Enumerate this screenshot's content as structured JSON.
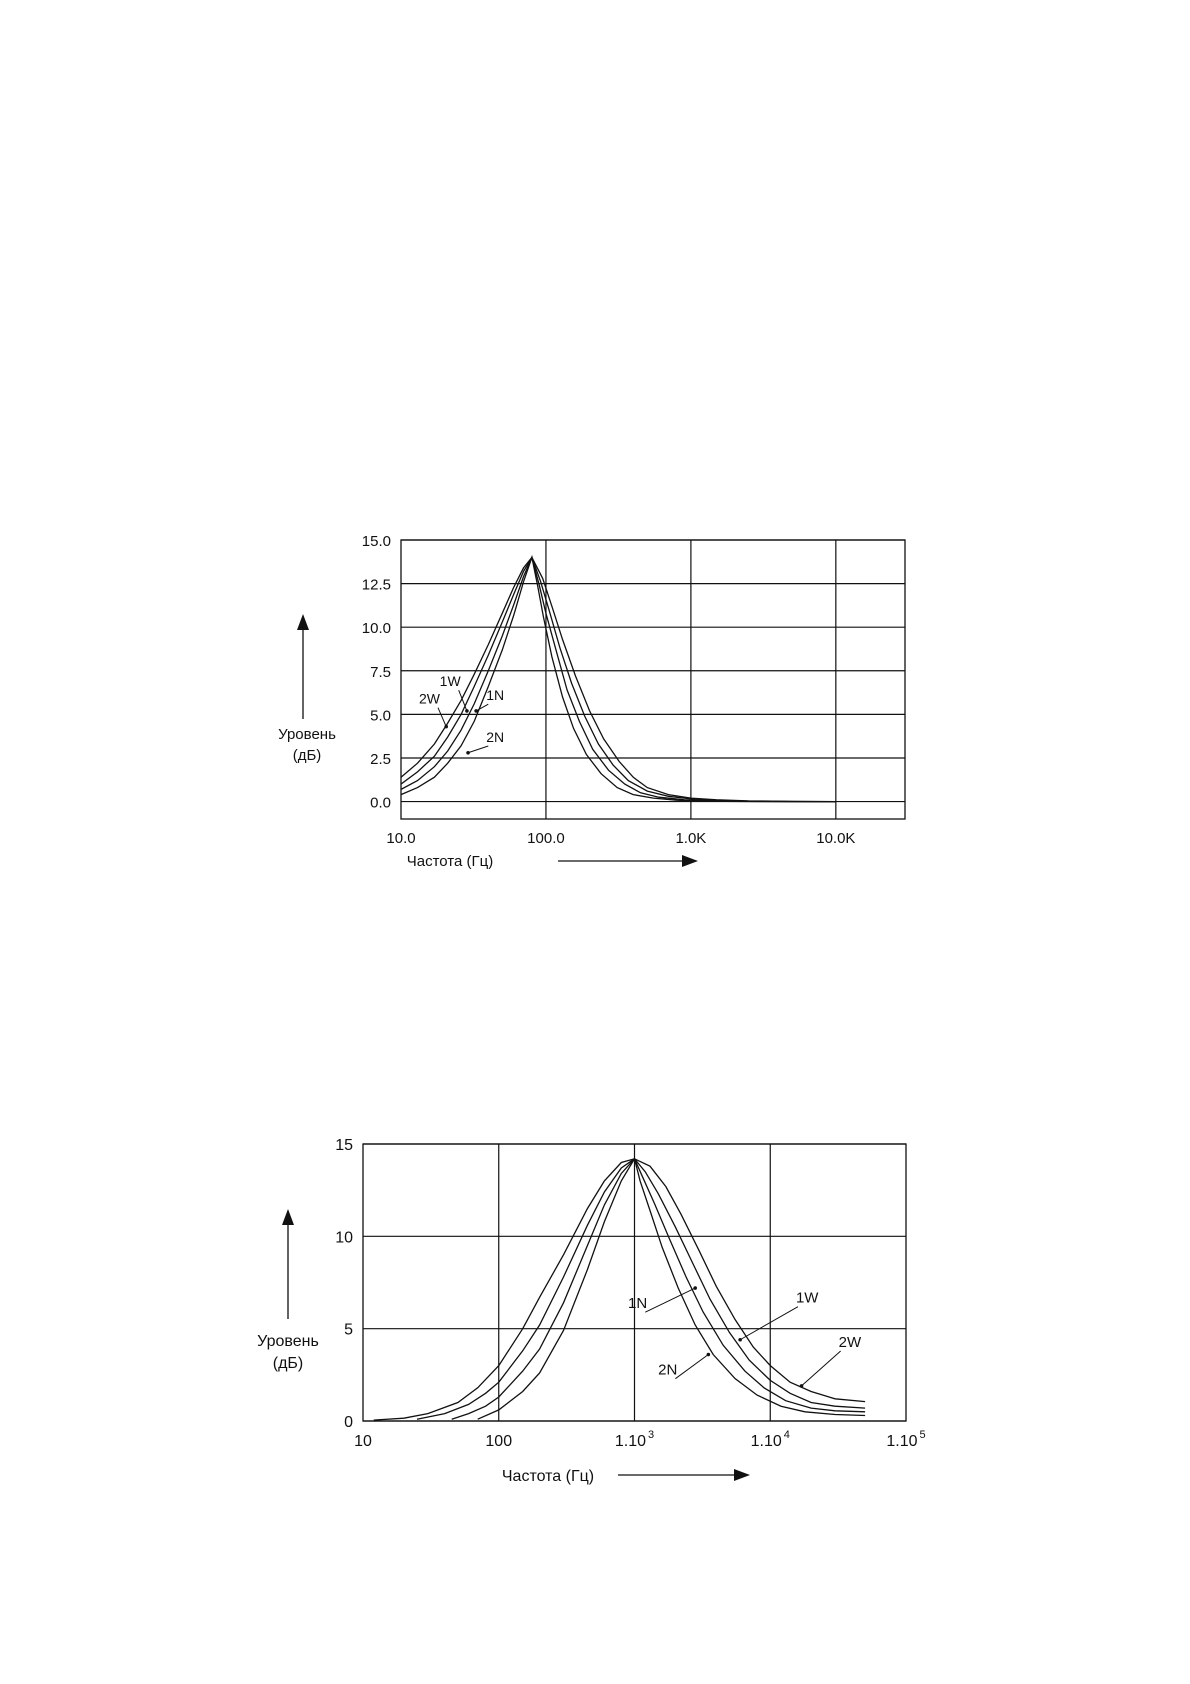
{
  "chart_data": [
    {
      "type": "line",
      "x_scale": "log",
      "xlim": [
        10,
        30000
      ],
      "ylim": [
        -1.0,
        15.0
      ],
      "grid": true,
      "ylabel_lines": [
        "Уровень",
        "(дБ)"
      ],
      "xlabel": "Частота (Гц)",
      "x_ticks": [
        {
          "value": 10,
          "label": "10.0"
        },
        {
          "value": 100,
          "label": "100.0"
        },
        {
          "value": 1000,
          "label": "1.0K"
        },
        {
          "value": 10000,
          "label": "10.0K"
        }
      ],
      "y_ticks": [
        {
          "value": 0,
          "label": "0.0"
        },
        {
          "value": 2.5,
          "label": "2.5"
        },
        {
          "value": 5,
          "label": "5.0"
        },
        {
          "value": 7.5,
          "label": "7.5"
        },
        {
          "value": 10,
          "label": "10.0"
        },
        {
          "value": 12.5,
          "label": "12.5"
        },
        {
          "value": 15,
          "label": "15.0"
        }
      ],
      "peak": {
        "x": 80,
        "y": 14.0
      },
      "series": [
        {
          "name": "2W",
          "label_x": 18,
          "label_y": 5.5,
          "point_x": 20.5,
          "point_y": 4.3
        },
        {
          "name": "1W",
          "label_x": 25,
          "label_y": 6.5,
          "point_x": 28.5,
          "point_y": 5.2
        },
        {
          "name": "1N",
          "label_x": 40,
          "label_y": 5.7,
          "point_x": 33,
          "point_y": 5.2
        },
        {
          "name": "2N",
          "label_x": 40,
          "label_y": 3.3,
          "point_x": 29,
          "point_y": 2.8
        }
      ],
      "curve_points": {
        "2W": [
          [
            10,
            1.4
          ],
          [
            13,
            2.2
          ],
          [
            17,
            3.3
          ],
          [
            21,
            4.5
          ],
          [
            26,
            5.8
          ],
          [
            32,
            7.3
          ],
          [
            40,
            9.0
          ],
          [
            50,
            10.8
          ],
          [
            60,
            12.3
          ],
          [
            70,
            13.4
          ],
          [
            80,
            14.0
          ],
          [
            95,
            12.8
          ],
          [
            110,
            11.2
          ],
          [
            130,
            9.3
          ],
          [
            160,
            7.2
          ],
          [
            200,
            5.2
          ],
          [
            250,
            3.6
          ],
          [
            320,
            2.3
          ],
          [
            400,
            1.4
          ],
          [
            500,
            0.8
          ],
          [
            700,
            0.4
          ],
          [
            1000,
            0.2
          ],
          [
            1500,
            0.1
          ],
          [
            2500,
            0.04
          ],
          [
            5000,
            0.01
          ],
          [
            10000,
            0.0
          ]
        ],
        "1W": [
          [
            10,
            1.0
          ],
          [
            13,
            1.7
          ],
          [
            17,
            2.6
          ],
          [
            21,
            3.7
          ],
          [
            26,
            5.0
          ],
          [
            32,
            6.6
          ],
          [
            40,
            8.4
          ],
          [
            50,
            10.3
          ],
          [
            60,
            11.9
          ],
          [
            70,
            13.2
          ],
          [
            80,
            14.0
          ],
          [
            92,
            12.6
          ],
          [
            105,
            11.0
          ],
          [
            125,
            8.8
          ],
          [
            150,
            6.8
          ],
          [
            185,
            4.9
          ],
          [
            230,
            3.3
          ],
          [
            290,
            2.1
          ],
          [
            370,
            1.2
          ],
          [
            500,
            0.6
          ],
          [
            700,
            0.3
          ],
          [
            1000,
            0.15
          ],
          [
            1500,
            0.07
          ],
          [
            2500,
            0.02
          ],
          [
            5000,
            0.0
          ],
          [
            10000,
            0.0
          ]
        ],
        "1N": [
          [
            10,
            0.7
          ],
          [
            13,
            1.2
          ],
          [
            17,
            2.0
          ],
          [
            21,
            2.9
          ],
          [
            26,
            4.1
          ],
          [
            32,
            5.6
          ],
          [
            40,
            7.5
          ],
          [
            50,
            9.5
          ],
          [
            60,
            11.3
          ],
          [
            70,
            12.9
          ],
          [
            80,
            14.0
          ],
          [
            90,
            12.4
          ],
          [
            100,
            10.8
          ],
          [
            120,
            8.4
          ],
          [
            140,
            6.4
          ],
          [
            170,
            4.6
          ],
          [
            210,
            3.0
          ],
          [
            270,
            1.8
          ],
          [
            350,
            1.0
          ],
          [
            450,
            0.5
          ],
          [
            600,
            0.25
          ],
          [
            900,
            0.1
          ],
          [
            1500,
            0.03
          ],
          [
            3000,
            0.01
          ],
          [
            10000,
            0.0
          ]
        ],
        "2N": [
          [
            10,
            0.4
          ],
          [
            13,
            0.8
          ],
          [
            17,
            1.4
          ],
          [
            21,
            2.2
          ],
          [
            26,
            3.2
          ],
          [
            32,
            4.6
          ],
          [
            40,
            6.6
          ],
          [
            50,
            8.7
          ],
          [
            60,
            10.7
          ],
          [
            70,
            12.6
          ],
          [
            80,
            14.0
          ],
          [
            88,
            12.3
          ],
          [
            96,
            10.6
          ],
          [
            110,
            8.3
          ],
          [
            130,
            6.0
          ],
          [
            155,
            4.2
          ],
          [
            190,
            2.7
          ],
          [
            240,
            1.6
          ],
          [
            310,
            0.8
          ],
          [
            400,
            0.4
          ],
          [
            550,
            0.2
          ],
          [
            800,
            0.08
          ],
          [
            1300,
            0.02
          ],
          [
            3000,
            0.0
          ],
          [
            10000,
            0.0
          ]
        ]
      }
    },
    {
      "type": "line",
      "x_scale": "log",
      "xlim": [
        10,
        100000
      ],
      "ylim": [
        0,
        15
      ],
      "grid": true,
      "ylabel_lines": [
        "Уровень",
        "(дБ)"
      ],
      "xlabel": "Частота (Гц)",
      "x_ticks": [
        {
          "value": 10,
          "label": "10"
        },
        {
          "value": 100,
          "label": "100"
        },
        {
          "value": 1000,
          "label": "1.10",
          "sup": "3"
        },
        {
          "value": 10000,
          "label": "1.10",
          "sup": "4"
        },
        {
          "value": 100000,
          "label": "1.10",
          "sup": "5"
        }
      ],
      "y_ticks": [
        {
          "value": 0,
          "label": "0"
        },
        {
          "value": 5,
          "label": "5"
        },
        {
          "value": 10,
          "label": "10"
        },
        {
          "value": 15,
          "label": "15"
        }
      ],
      "peak": {
        "x": 1000,
        "y": 14.2
      },
      "series": [
        {
          "name": "1N",
          "label_x": 1200,
          "label_y": 6.0,
          "point_x": 2800,
          "point_y": 7.2
        },
        {
          "name": "2N",
          "label_x": 2000,
          "label_y": 2.4,
          "point_x": 3500,
          "point_y": 3.6
        },
        {
          "name": "1W",
          "label_x": 16000,
          "label_y": 6.3,
          "point_x": 6000,
          "point_y": 4.4
        },
        {
          "name": "2W",
          "label_x": 33000,
          "label_y": 3.9,
          "point_x": 17000,
          "point_y": 1.9
        }
      ],
      "curve_points": {
        "2W": [
          [
            12,
            0.05
          ],
          [
            20,
            0.15
          ],
          [
            30,
            0.4
          ],
          [
            50,
            1.0
          ],
          [
            70,
            1.8
          ],
          [
            100,
            3.0
          ],
          [
            150,
            5.0
          ],
          [
            200,
            6.7
          ],
          [
            300,
            9.0
          ],
          [
            450,
            11.5
          ],
          [
            600,
            13.0
          ],
          [
            800,
            14.0
          ],
          [
            1000,
            14.2
          ],
          [
            1300,
            13.8
          ],
          [
            1700,
            12.7
          ],
          [
            2200,
            11.2
          ],
          [
            3000,
            9.2
          ],
          [
            4000,
            7.3
          ],
          [
            5500,
            5.5
          ],
          [
            7500,
            4.0
          ],
          [
            10000,
            3.0
          ],
          [
            14000,
            2.1
          ],
          [
            20000,
            1.6
          ],
          [
            30000,
            1.2
          ],
          [
            50000,
            1.05
          ]
        ],
        "1W": [
          [
            25,
            0.1
          ],
          [
            40,
            0.4
          ],
          [
            60,
            0.9
          ],
          [
            80,
            1.5
          ],
          [
            100,
            2.1
          ],
          [
            150,
            3.8
          ],
          [
            200,
            5.2
          ],
          [
            300,
            7.8
          ],
          [
            450,
            10.6
          ],
          [
            600,
            12.4
          ],
          [
            800,
            13.7
          ],
          [
            1000,
            14.2
          ],
          [
            1200,
            13.5
          ],
          [
            1500,
            12.3
          ],
          [
            2000,
            10.5
          ],
          [
            2700,
            8.5
          ],
          [
            3600,
            6.6
          ],
          [
            5000,
            4.8
          ],
          [
            7000,
            3.3
          ],
          [
            10000,
            2.2
          ],
          [
            14000,
            1.5
          ],
          [
            20000,
            1.0
          ],
          [
            30000,
            0.8
          ],
          [
            50000,
            0.7
          ]
        ],
        "1N": [
          [
            45,
            0.1
          ],
          [
            60,
            0.4
          ],
          [
            80,
            0.8
          ],
          [
            100,
            1.3
          ],
          [
            150,
            2.7
          ],
          [
            200,
            3.9
          ],
          [
            300,
            6.4
          ],
          [
            450,
            9.5
          ],
          [
            600,
            11.7
          ],
          [
            800,
            13.4
          ],
          [
            1000,
            14.2
          ],
          [
            1150,
            13.2
          ],
          [
            1400,
            11.8
          ],
          [
            1800,
            9.9
          ],
          [
            2400,
            7.8
          ],
          [
            3200,
            5.9
          ],
          [
            4500,
            4.1
          ],
          [
            6500,
            2.7
          ],
          [
            9000,
            1.8
          ],
          [
            13000,
            1.1
          ],
          [
            20000,
            0.7
          ],
          [
            30000,
            0.55
          ],
          [
            50000,
            0.5
          ]
        ],
        "2N": [
          [
            70,
            0.1
          ],
          [
            100,
            0.6
          ],
          [
            150,
            1.6
          ],
          [
            200,
            2.6
          ],
          [
            300,
            4.9
          ],
          [
            450,
            8.2
          ],
          [
            600,
            10.8
          ],
          [
            800,
            13.0
          ],
          [
            1000,
            14.2
          ],
          [
            1100,
            13.0
          ],
          [
            1300,
            11.4
          ],
          [
            1600,
            9.4
          ],
          [
            2100,
            7.2
          ],
          [
            2800,
            5.2
          ],
          [
            3800,
            3.6
          ],
          [
            5500,
            2.3
          ],
          [
            8000,
            1.4
          ],
          [
            12000,
            0.8
          ],
          [
            18000,
            0.5
          ],
          [
            30000,
            0.35
          ],
          [
            50000,
            0.3
          ]
        ]
      }
    }
  ]
}
